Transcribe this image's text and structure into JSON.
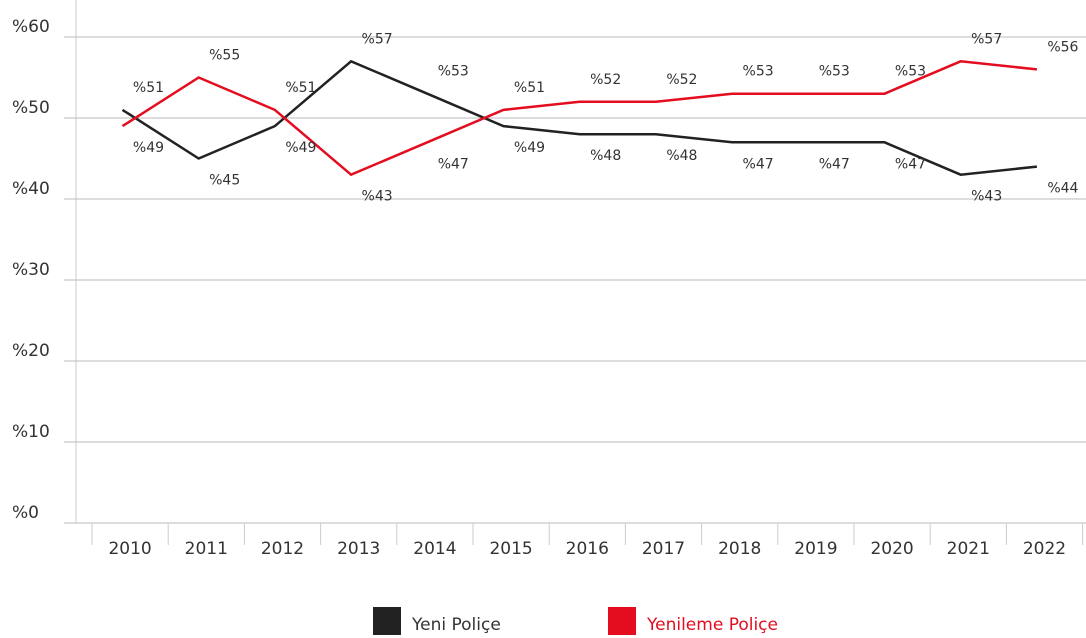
{
  "chart_data": {
    "type": "line",
    "categories": [
      "2010",
      "2011",
      "2012",
      "2013",
      "2014",
      "2015",
      "2016",
      "2017",
      "2018",
      "2019",
      "2020",
      "2021",
      "2022"
    ],
    "series": [
      {
        "name": "Yeni Poliçe",
        "color": "#222222",
        "values": [
          51,
          45,
          49,
          57,
          53,
          49,
          48,
          48,
          47,
          47,
          47,
          43,
          44
        ],
        "value_labels": [
          "%51",
          "%45",
          "%49",
          "%57",
          "%53",
          "%49",
          "%48",
          "%48",
          "%47",
          "%47",
          "%47",
          "%43",
          "%44"
        ]
      },
      {
        "name": "Yenileme Poliçe",
        "color": "#e30d1f",
        "values": [
          49,
          55,
          51,
          43,
          47,
          51,
          52,
          52,
          53,
          53,
          53,
          57,
          56
        ],
        "value_labels": [
          "%49",
          "%55",
          "%51",
          "%43",
          "%47",
          "%51",
          "%52",
          "%52",
          "%53",
          "%53",
          "%53",
          "%57",
          "%56"
        ]
      }
    ],
    "ylim": [
      0,
      60
    ],
    "yticks": [
      {
        "value": 0,
        "label": "%0"
      },
      {
        "value": 10,
        "label": "%10"
      },
      {
        "value": 20,
        "label": "%20"
      },
      {
        "value": 30,
        "label": "%30"
      },
      {
        "value": 40,
        "label": "%40"
      },
      {
        "value": 50,
        "label": "%50"
      },
      {
        "value": 60,
        "label": "%60"
      }
    ],
    "grid": true
  }
}
